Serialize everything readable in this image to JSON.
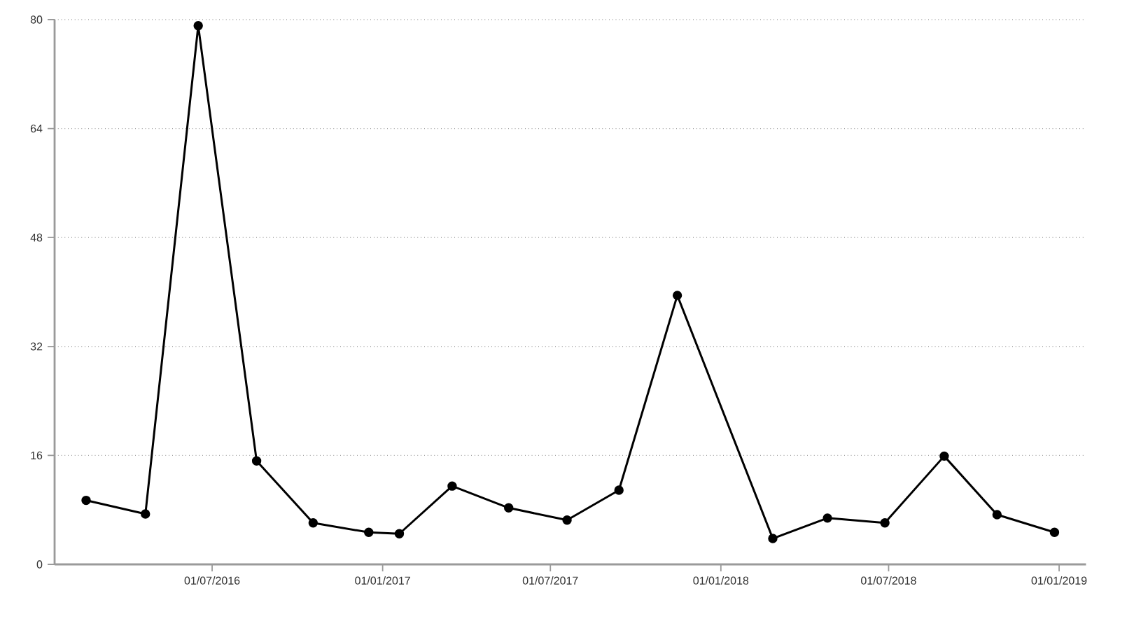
{
  "chart_data": {
    "type": "line",
    "x": [
      "2016-02-16",
      "2016-04-20",
      "2016-06-16",
      "2016-08-18",
      "2016-10-18",
      "2016-12-17",
      "2017-01-19",
      "2017-03-17",
      "2017-05-17",
      "2017-07-19",
      "2017-09-13",
      "2017-11-15",
      "2018-02-26",
      "2018-04-26",
      "2018-06-27",
      "2018-08-30",
      "2018-10-26",
      "2018-12-27"
    ],
    "series": [
      {
        "color": "#000000",
        "values": [
          9.4,
          7.4,
          79.1,
          15.2,
          6.1,
          4.7,
          4.5,
          11.5,
          8.3,
          6.5,
          10.9,
          39.5,
          3.8,
          6.8,
          6.1,
          15.9,
          7.3,
          4.7
        ]
      }
    ],
    "xlim": [
      "2016-01-13",
      "2019-01-30"
    ],
    "xticks": [
      {
        "value": "2016-07-01",
        "label": "01/07/2016"
      },
      {
        "value": "2017-01-01",
        "label": "01/01/2017"
      },
      {
        "value": "2017-07-01",
        "label": "01/07/2017"
      },
      {
        "value": "2018-01-01",
        "label": "01/01/2018"
      },
      {
        "value": "2018-07-01",
        "label": "01/07/2018"
      },
      {
        "value": "2019-01-01",
        "label": "01/01/2019"
      }
    ],
    "ylim": [
      0,
      80
    ],
    "yticks": [
      0,
      16,
      32,
      48,
      64,
      80
    ],
    "grid": "y",
    "marker": "circle",
    "line_style": "solid"
  }
}
